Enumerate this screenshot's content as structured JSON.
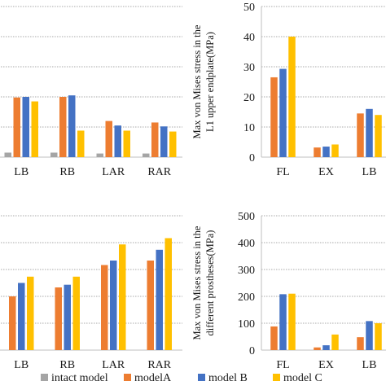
{
  "colors": {
    "intact": "#a5a5a5",
    "modelA": "#ed7d31",
    "modelB": "#4472c4",
    "modelC": "#ffc000",
    "axis": "#bfbfbf",
    "grid": "#8c8c8c"
  },
  "legend": [
    "intact model",
    "modelA",
    "model B",
    "model C"
  ],
  "chart_data": [
    {
      "id": "top-left",
      "type": "bar",
      "categories": [
        "LB",
        "RB",
        "LAR",
        "RAR"
      ],
      "ylim": [
        0,
        50
      ],
      "grid": true,
      "series": [
        {
          "name": "intact model",
          "values": [
            1.5,
            1.5,
            1.2,
            1.2
          ]
        },
        {
          "name": "modelA",
          "values": [
            19.8,
            20.0,
            12.0,
            11.5
          ]
        },
        {
          "name": "model B",
          "values": [
            20.0,
            20.5,
            10.5,
            10.2
          ]
        },
        {
          "name": "model C",
          "values": [
            18.5,
            8.8,
            8.8,
            8.5
          ]
        }
      ]
    },
    {
      "id": "top-right",
      "type": "bar",
      "categories": [
        "FL",
        "EX",
        "LB"
      ],
      "ytick_labels": [
        "0",
        "10",
        "20",
        "30",
        "40",
        "50"
      ],
      "ylim": [
        0,
        50
      ],
      "ylabel_line1": "Max von Mises stress in the",
      "ylabel_line2": "L1 upper endplate(MPa)",
      "grid": true,
      "series": [
        {
          "name": "modelA",
          "values": [
            26.5,
            3.2,
            14.5
          ]
        },
        {
          "name": "model B",
          "values": [
            29.3,
            3.5,
            16.0
          ]
        },
        {
          "name": "model C",
          "values": [
            40.0,
            4.2,
            14.0
          ]
        }
      ]
    },
    {
      "id": "bottom-left",
      "type": "bar",
      "categories": [
        "LB",
        "RB",
        "LAR",
        "RAR"
      ],
      "grid": true,
      "series": [
        {
          "name": "modelA",
          "values": [
            60,
            70,
            95,
            100
          ]
        },
        {
          "name": "model B",
          "values": [
            75,
            73,
            100,
            112
          ]
        },
        {
          "name": "model C",
          "values": [
            82,
            82,
            118,
            125
          ]
        }
      ]
    },
    {
      "id": "bottom-right",
      "type": "bar",
      "categories": [
        "FL",
        "EX",
        "LB"
      ],
      "ytick_labels": [
        "0",
        "100",
        "200",
        "300",
        "400",
        "500"
      ],
      "ylim": [
        0,
        500
      ],
      "ylabel_line1": "Max von Mises stress in the",
      "ylabel_line2": "different prostheses(MPa)",
      "grid": true,
      "series": [
        {
          "name": "modelA",
          "values": [
            88,
            10,
            48
          ]
        },
        {
          "name": "model B",
          "values": [
            208,
            18,
            108
          ]
        },
        {
          "name": "model C",
          "values": [
            210,
            58,
            100
          ]
        }
      ]
    }
  ]
}
